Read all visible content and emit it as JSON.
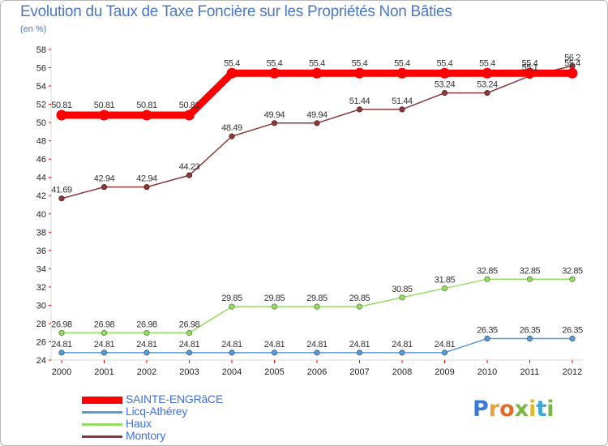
{
  "title": "Evolution du Taux de Taxe Foncière sur les Propriétés Non Bâties",
  "subtitle": "(en %)",
  "chart_data": {
    "type": "line",
    "title": "Evolution du Taux de Taxe Foncière sur les Propriétés Non Bâties",
    "ylabel": "(en %)",
    "xlabel": "",
    "ylim": [
      24,
      58
    ],
    "ytick_step": 2,
    "grid": false,
    "x": [
      "2000",
      "2001",
      "2002",
      "2003",
      "2004",
      "2005",
      "2006",
      "2007",
      "2008",
      "2009",
      "2010",
      "2011",
      "2012"
    ],
    "series": [
      {
        "name": "SAINTE-ENGRâCE",
        "color": "#ff0000",
        "thick": true,
        "values": [
          50.81,
          50.81,
          50.81,
          50.81,
          55.4,
          55.4,
          55.4,
          55.4,
          55.4,
          55.4,
          55.4,
          55.4,
          55.4
        ],
        "labels": [
          "50.81",
          "50.81",
          "50.81",
          "50.81",
          "55.4",
          "55.4",
          "55.4",
          "55.4",
          "55.4",
          "55.4",
          "55.4",
          "55.4",
          "55.4"
        ]
      },
      {
        "name": "Licq-Athérey",
        "color": "#5b9ad2",
        "thick": false,
        "values": [
          24.81,
          24.81,
          24.81,
          24.81,
          24.81,
          24.81,
          24.81,
          24.81,
          24.81,
          24.81,
          26.35,
          26.35,
          26.35
        ],
        "labels": [
          "24.81",
          "24.81",
          "24.81",
          "24.81",
          "24.81",
          "24.81",
          "24.81",
          "24.81",
          "24.81",
          "24.81",
          "26.35",
          "26.35",
          "26.35"
        ]
      },
      {
        "name": "Haux",
        "color": "#96dc64",
        "thick": false,
        "values": [
          26.98,
          26.98,
          26.98,
          26.98,
          29.85,
          29.85,
          29.85,
          29.85,
          30.85,
          31.85,
          32.85,
          32.85,
          32.85
        ],
        "labels": [
          "26.98",
          "26.98",
          "26.98",
          "26.98",
          "29.85",
          "29.85",
          "29.85",
          "29.85",
          "30.85",
          "31.85",
          "32.85",
          "32.85",
          "32.85"
        ]
      },
      {
        "name": "Montory",
        "color": "#8b3a3a",
        "thick": false,
        "values": [
          41.69,
          42.94,
          42.94,
          44.23,
          48.49,
          49.94,
          49.94,
          51.44,
          51.44,
          53.24,
          53.24,
          55.1,
          56.2
        ],
        "labels": [
          "41.69",
          "42.94",
          "42.94",
          "44.23",
          "48.49",
          "49.94",
          "49.94",
          "51.44",
          "51.44",
          "53.24",
          "53.24",
          "55.1",
          "56.2"
        ]
      }
    ]
  },
  "logo": {
    "letters": [
      {
        "char": "P",
        "color": "#3a7bd5"
      },
      {
        "char": "r",
        "color": "#e8a33a"
      },
      {
        "char": "o",
        "color": "#e06b2a"
      },
      {
        "char": "x",
        "color": "#7ab648"
      },
      {
        "char": "i",
        "color": "#e0b82a"
      },
      {
        "char": "t",
        "color": "#3aa6d5"
      },
      {
        "char": "i",
        "color": "#7ab648"
      }
    ]
  }
}
